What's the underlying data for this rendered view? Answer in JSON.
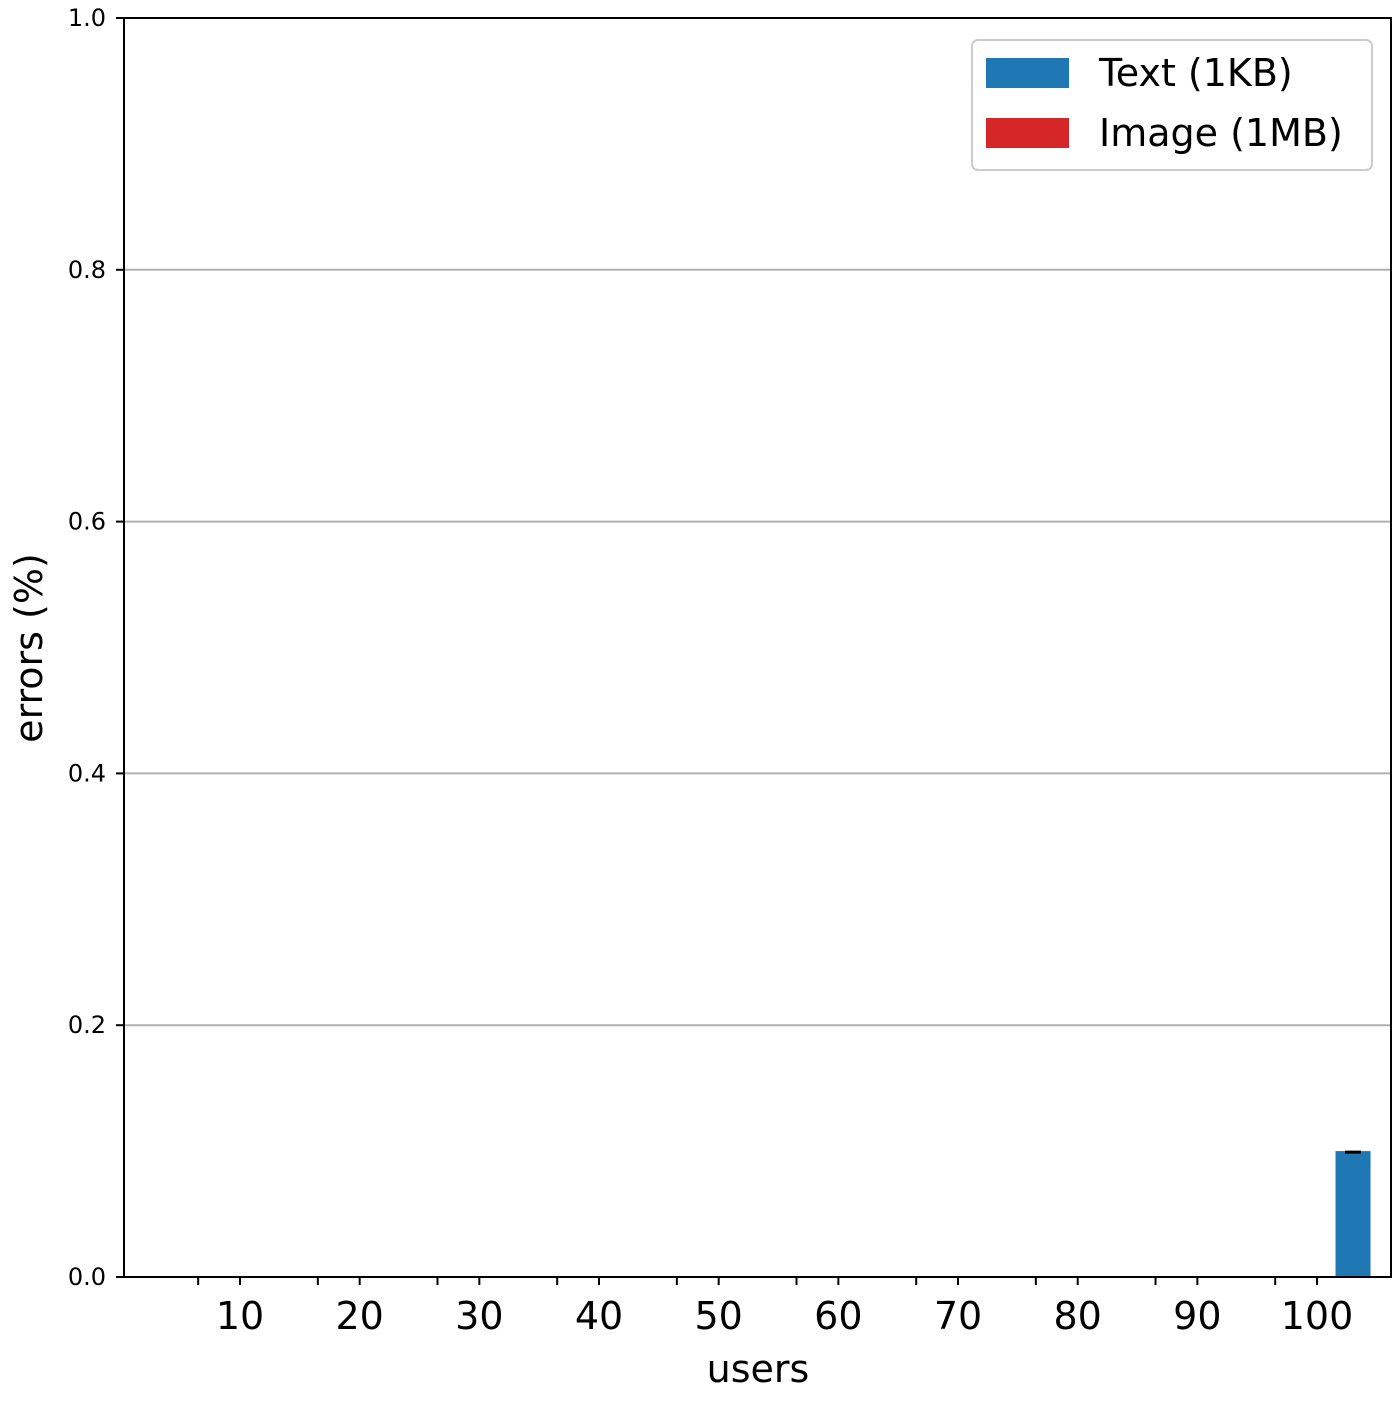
{
  "chart_data": {
    "type": "bar",
    "xlabel": "users",
    "ylabel": "errors (%)",
    "ylim": [
      0,
      1.0
    ],
    "yticks": [
      "0.0",
      "0.2",
      "0.4",
      "0.6",
      "0.8",
      "1.0"
    ],
    "categories": [
      "10",
      "20",
      "30",
      "40",
      "50",
      "60",
      "70",
      "80",
      "90",
      "100"
    ],
    "grid": "horizontal",
    "legend_position": "top-right",
    "series": [
      {
        "name": "Text (1KB)",
        "color": "#1f77b4",
        "values": [
          0,
          0,
          0,
          0,
          0,
          0,
          0,
          0,
          0,
          0.1
        ]
      },
      {
        "name": "Image (1MB)",
        "color": "#d62728",
        "values": [
          0,
          0,
          0,
          0,
          0,
          0,
          0,
          0,
          0,
          0
        ]
      }
    ]
  }
}
